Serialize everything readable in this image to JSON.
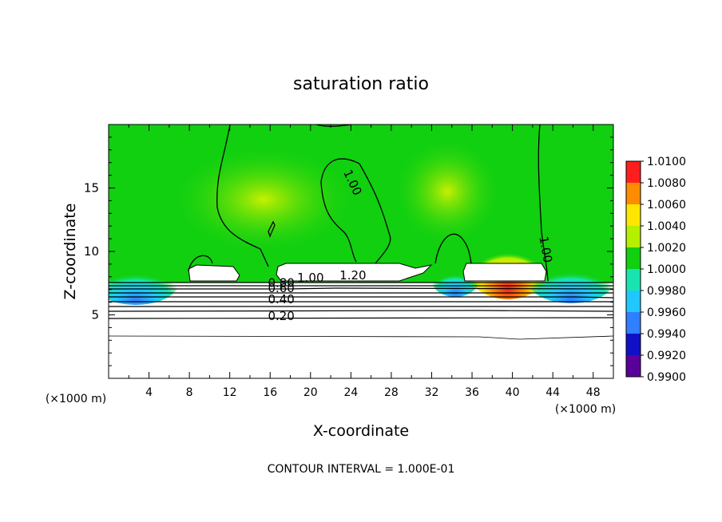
{
  "chart_data": {
    "type": "heatmap",
    "title": "saturation ratio",
    "xlabel": "X-coordinate",
    "ylabel": "Z-coordinate",
    "x_unit_left": "(×1000 m)",
    "x_unit_right": "(×1000 m)",
    "xlim": [
      0,
      50
    ],
    "ylim": [
      0,
      20
    ],
    "x_ticks": [
      4,
      8,
      12,
      16,
      20,
      24,
      28,
      32,
      36,
      40,
      44,
      48
    ],
    "y_ticks": [
      5,
      10,
      15
    ],
    "colorbar": {
      "levels": [
        "0.9900",
        "0.9920",
        "0.9940",
        "0.9960",
        "0.9980",
        "1.0000",
        "1.0020",
        "1.0040",
        "1.0060",
        "1.0080",
        "1.0100"
      ],
      "colors": [
        "#5a009a",
        "#1010c8",
        "#2f7fff",
        "#20c8ff",
        "#18e4b0",
        "#10d010",
        "#b4f000",
        "#ffe600",
        "#ff8c00",
        "#ff1e1e",
        "#ff8c8c"
      ]
    },
    "contour_labels": [
      {
        "text": "1.00",
        "x": 23.8,
        "z": 15.3,
        "rotate": 65
      },
      {
        "text": "1.00",
        "x": 42.9,
        "z": 10.1,
        "rotate": 80
      },
      {
        "text": "1.00",
        "x": 20.0,
        "z": 7.6,
        "rotate": 0
      },
      {
        "text": "1.20",
        "x": 24.2,
        "z": 7.8,
        "rotate": 0
      },
      {
        "text": "0.80",
        "x": 17.1,
        "z": 7.2,
        "rotate": 0
      },
      {
        "text": "0.60",
        "x": 17.1,
        "z": 6.8,
        "rotate": 0
      },
      {
        "text": "0.40",
        "x": 17.1,
        "z": 5.9,
        "rotate": 0
      },
      {
        "text": "0.20",
        "x": 17.1,
        "z": 4.6,
        "rotate": 0
      }
    ],
    "footer": "CONTOUR INTERVAL = 1.000E-01"
  }
}
